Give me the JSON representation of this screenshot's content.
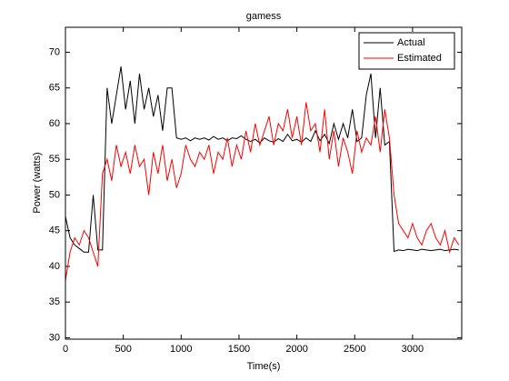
{
  "chart_data": {
    "type": "line",
    "title": "gamess",
    "xlabel": "Time(s)",
    "ylabel": "Power (watts)",
    "x": [
      0,
      40,
      80,
      120,
      160,
      200,
      240,
      280,
      320,
      360,
      400,
      440,
      480,
      520,
      560,
      600,
      640,
      680,
      720,
      760,
      800,
      840,
      880,
      920,
      960,
      1000,
      1040,
      1080,
      1120,
      1160,
      1200,
      1240,
      1280,
      1320,
      1360,
      1400,
      1440,
      1480,
      1520,
      1560,
      1600,
      1640,
      1680,
      1720,
      1760,
      1800,
      1840,
      1880,
      1920,
      1960,
      2000,
      2040,
      2080,
      2120,
      2160,
      2200,
      2240,
      2280,
      2320,
      2360,
      2400,
      2440,
      2480,
      2520,
      2560,
      2600,
      2640,
      2680,
      2720,
      2760,
      2800,
      2840,
      2880,
      2920,
      2960,
      3000,
      3040,
      3080,
      3120,
      3160,
      3200,
      3240,
      3280,
      3320,
      3360,
      3400
    ],
    "series": [
      {
        "name": "Actual",
        "color": "#000000",
        "values": [
          47,
          44,
          43,
          42.5,
          42,
          42,
          50,
          42.3,
          42.3,
          65,
          60,
          64,
          68,
          62,
          66,
          60,
          67,
          62,
          65,
          61,
          64,
          59,
          65,
          65,
          58,
          57.8,
          58,
          57.6,
          58,
          57.8,
          58,
          57.7,
          58.2,
          57.8,
          58,
          57.6,
          58,
          57.9,
          58.3,
          57.8,
          57.5,
          57.8,
          57.3,
          58,
          57.6,
          57.4,
          57.9,
          57.5,
          58.5,
          57.6,
          57.8,
          57.4,
          58,
          57.5,
          59,
          57.6,
          58.5,
          57.2,
          60,
          57.8,
          60,
          58,
          62,
          57.5,
          58,
          64,
          67,
          58,
          65,
          57,
          57.5,
          42.1,
          42.3,
          42.2,
          42.4,
          42.3,
          42.2,
          42.4,
          42.3,
          42.2,
          42.3,
          42.4,
          42.2,
          42.3,
          42.4,
          42.3
        ]
      },
      {
        "name": "Estimated",
        "color": "#ff0000",
        "values": [
          38,
          42,
          44,
          43,
          45,
          44,
          42,
          40,
          53,
          55,
          52,
          57,
          54,
          56,
          53,
          57,
          54,
          55,
          50,
          56,
          53,
          57,
          52,
          55,
          51,
          53,
          57,
          55,
          54,
          56,
          55,
          57,
          53,
          56,
          55,
          58,
          54,
          57,
          55,
          59,
          56,
          60,
          57,
          59,
          61,
          57,
          60,
          59,
          62,
          58,
          61,
          57,
          63,
          59,
          60,
          56,
          62,
          55,
          59,
          54,
          58,
          56,
          53,
          59,
          56,
          58,
          57,
          61,
          56,
          62,
          58,
          50,
          46,
          45,
          44,
          46,
          44,
          43,
          45,
          46,
          44,
          43,
          45,
          42,
          44,
          43
        ]
      }
    ],
    "xlim": [
      0,
      3425
    ],
    "xticks": [
      0,
      500,
      1000,
      1500,
      2000,
      2500,
      3000
    ],
    "ylim": [
      29.8,
      73.5
    ],
    "yticks": [
      30,
      35,
      40,
      45,
      50,
      55,
      60,
      65,
      70
    ],
    "legend": "northeast"
  }
}
